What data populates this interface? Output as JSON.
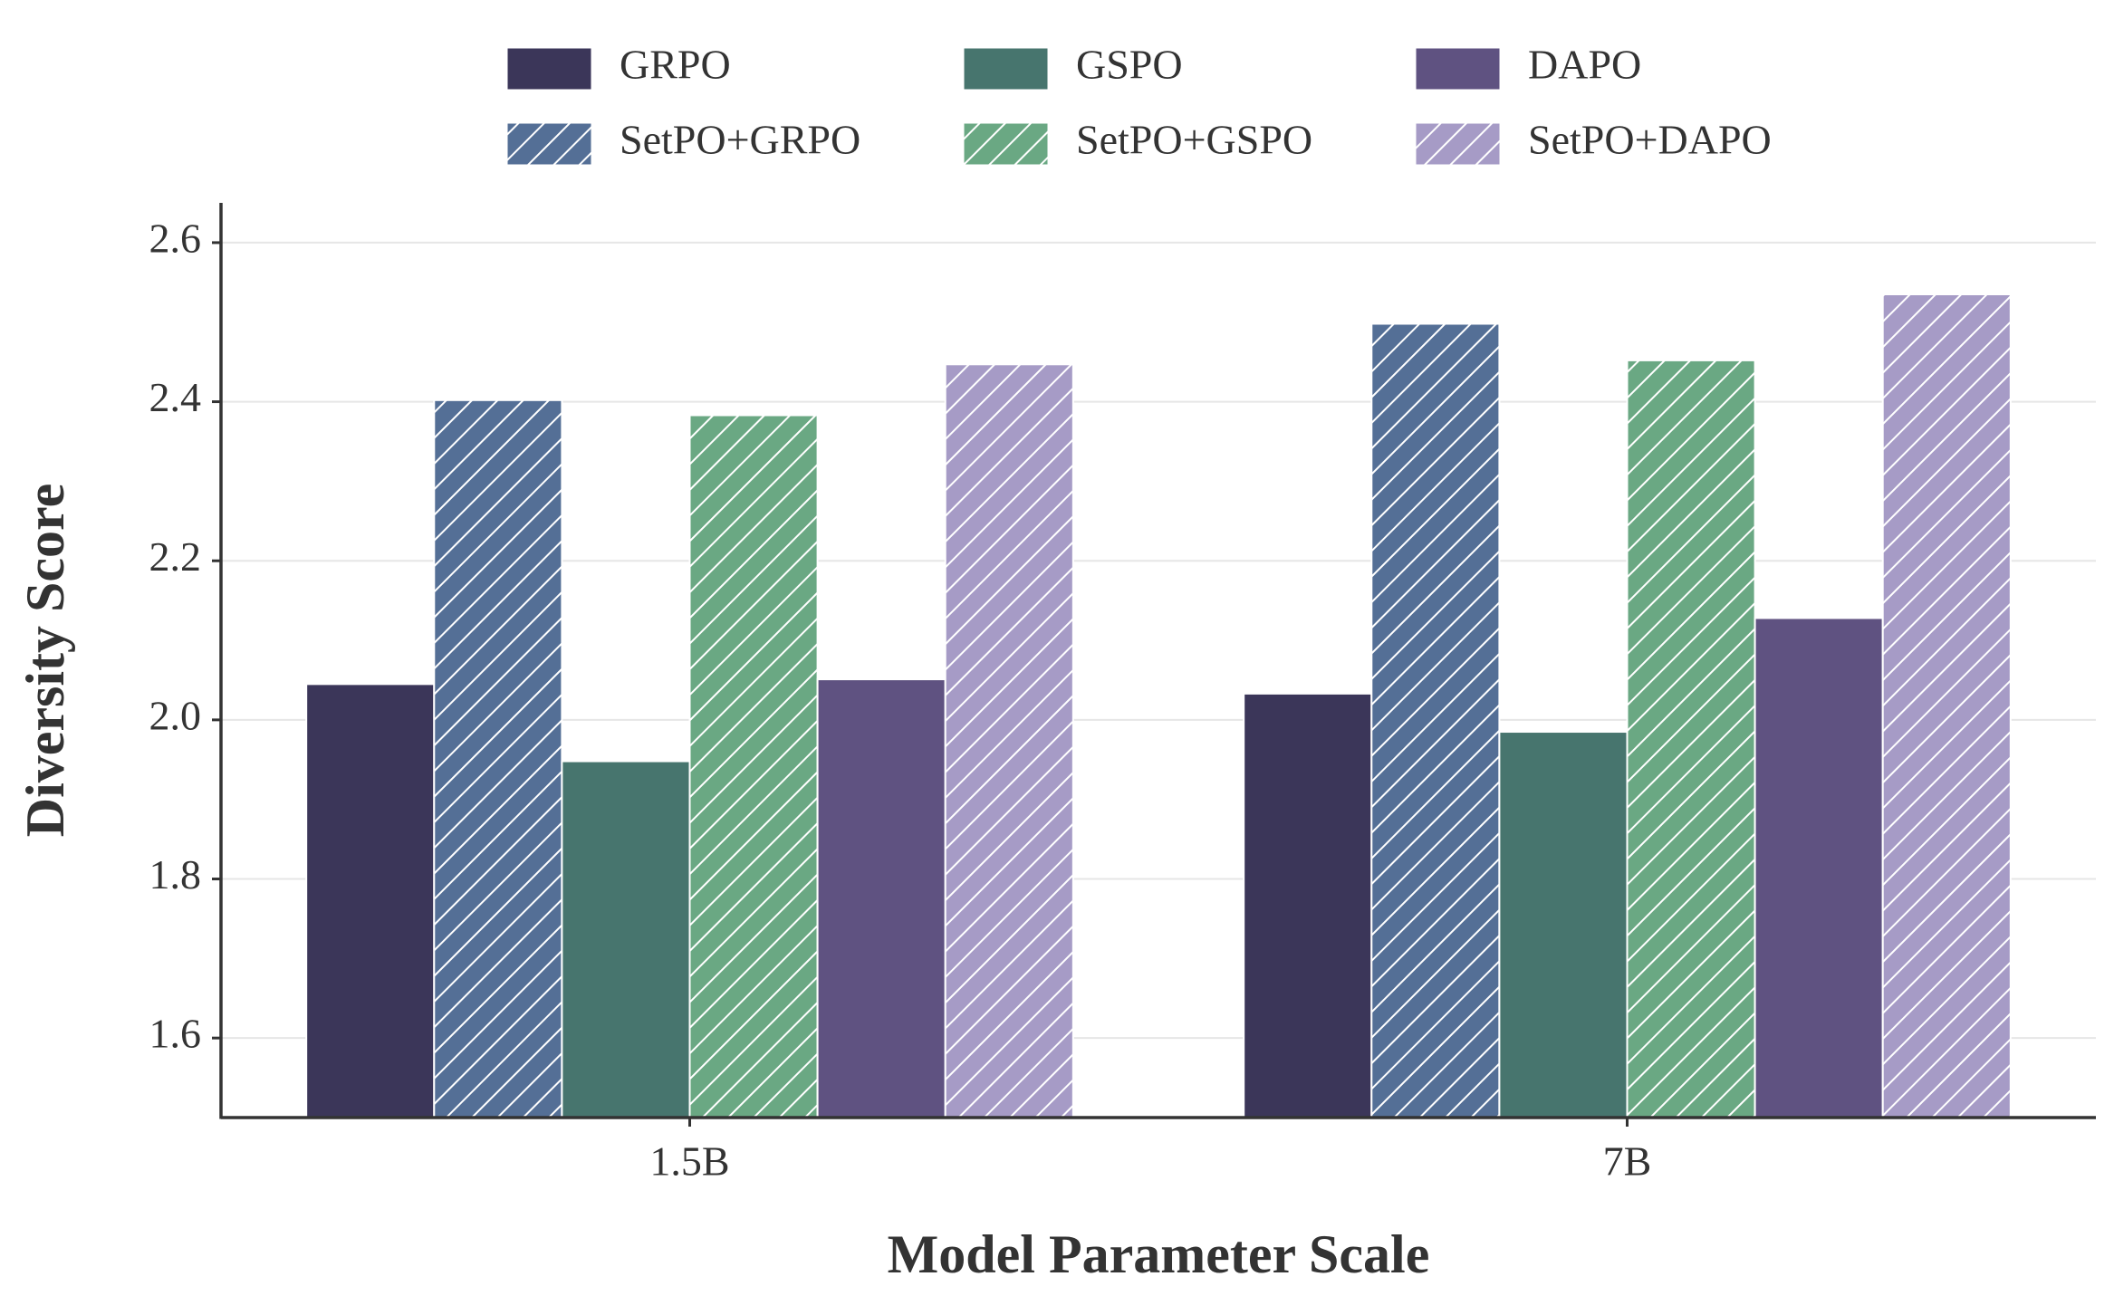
{
  "chart_data": {
    "type": "bar",
    "x_label": "Model Parameter Scale",
    "y_label": "Diversity Score",
    "categories": [
      "1.5B",
      "7B"
    ],
    "series": [
      {
        "name": "GRPO",
        "color": "#3b3659",
        "hatched": false,
        "values": [
          2.045,
          2.033
        ]
      },
      {
        "name": "SetPO+GRPO",
        "color": "#546f96",
        "hatched": true,
        "values": [
          2.402,
          2.498
        ]
      },
      {
        "name": "GSPO",
        "color": "#47756e",
        "hatched": false,
        "values": [
          1.948,
          1.985
        ]
      },
      {
        "name": "SetPO+GSPO",
        "color": "#6aa883",
        "hatched": true,
        "values": [
          2.383,
          2.452
        ]
      },
      {
        "name": "DAPO",
        "color": "#5f5281",
        "hatched": false,
        "values": [
          2.051,
          2.128
        ]
      },
      {
        "name": "SetPO+DAPO",
        "color": "#a69bc6",
        "hatched": true,
        "values": [
          2.447,
          2.535
        ]
      }
    ],
    "ylim": [
      1.5,
      2.65
    ],
    "yticks": [
      1.6,
      1.8,
      {
        "value": 2,
        "label": "2.0"
      },
      2.2,
      2.4,
      2.6
    ],
    "grid": true,
    "legend": "top"
  }
}
